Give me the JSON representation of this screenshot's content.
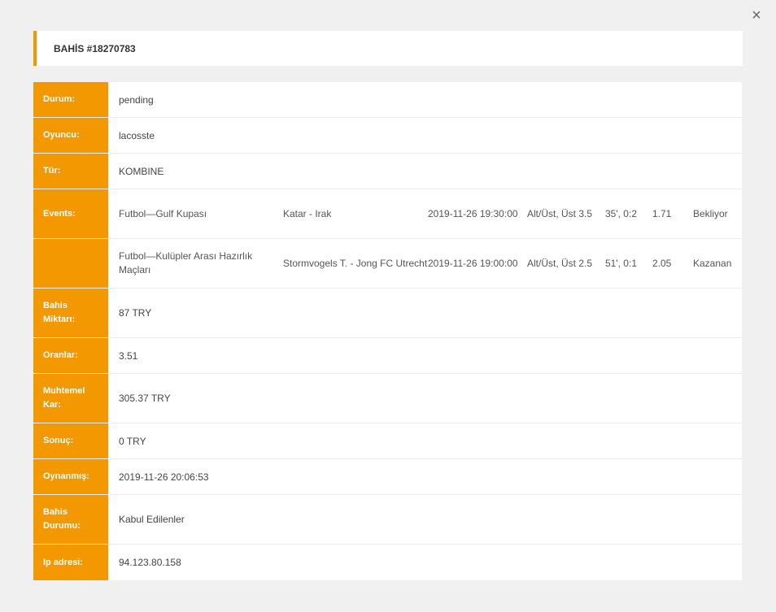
{
  "header": {
    "title": "BAHİS #18270783"
  },
  "close": {
    "symbol": "×"
  },
  "details": {
    "durum": {
      "label": "Durum:",
      "value": "pending"
    },
    "oyuncu": {
      "label": "Oyuncu:",
      "value": "lacosste"
    },
    "tur": {
      "label": "Tür:",
      "value": "KOMBINE"
    },
    "events_label": "Events:",
    "events": [
      {
        "sport": "Futbol—Gulf Kupası",
        "match": "Katar - Irak",
        "date": "2019-11-26 19:30:00",
        "market": "Alt/Üst, Üst 3.5",
        "score": "35', 0:2",
        "odds": "1.71",
        "status": "Bekliyor"
      },
      {
        "sport": "Futbol—Kulüpler Arası Hazırlık Maçları",
        "match": "Stormvogels T. - Jong FC Utrecht",
        "date": "2019-11-26 19:00:00",
        "market": "Alt/Üst, Üst 2.5",
        "score": "51', 0:1",
        "odds": "2.05",
        "status": "Kazanan"
      }
    ],
    "miktar": {
      "label": "Bahis Miktarı:",
      "value": "87 TRY"
    },
    "oranlar": {
      "label": "Oranlar:",
      "value": "3.51"
    },
    "kar": {
      "label": "Muhtemel Kar:",
      "value": "305.37 TRY"
    },
    "sonuc": {
      "label": "Sonuç:",
      "value": "0 TRY"
    },
    "oynanmis": {
      "label": "Oynanmış:",
      "value": "2019-11-26 20:06:53"
    },
    "bahis_durumu": {
      "label": "Bahis Durumu:",
      "value": "Kabul Edilenler"
    },
    "ip": {
      "label": "Ip adresi:",
      "value": "94.123.80.158"
    }
  },
  "colors": {
    "accent": "#f39800",
    "background": "#f0f0f0",
    "panel": "#ffffff"
  }
}
